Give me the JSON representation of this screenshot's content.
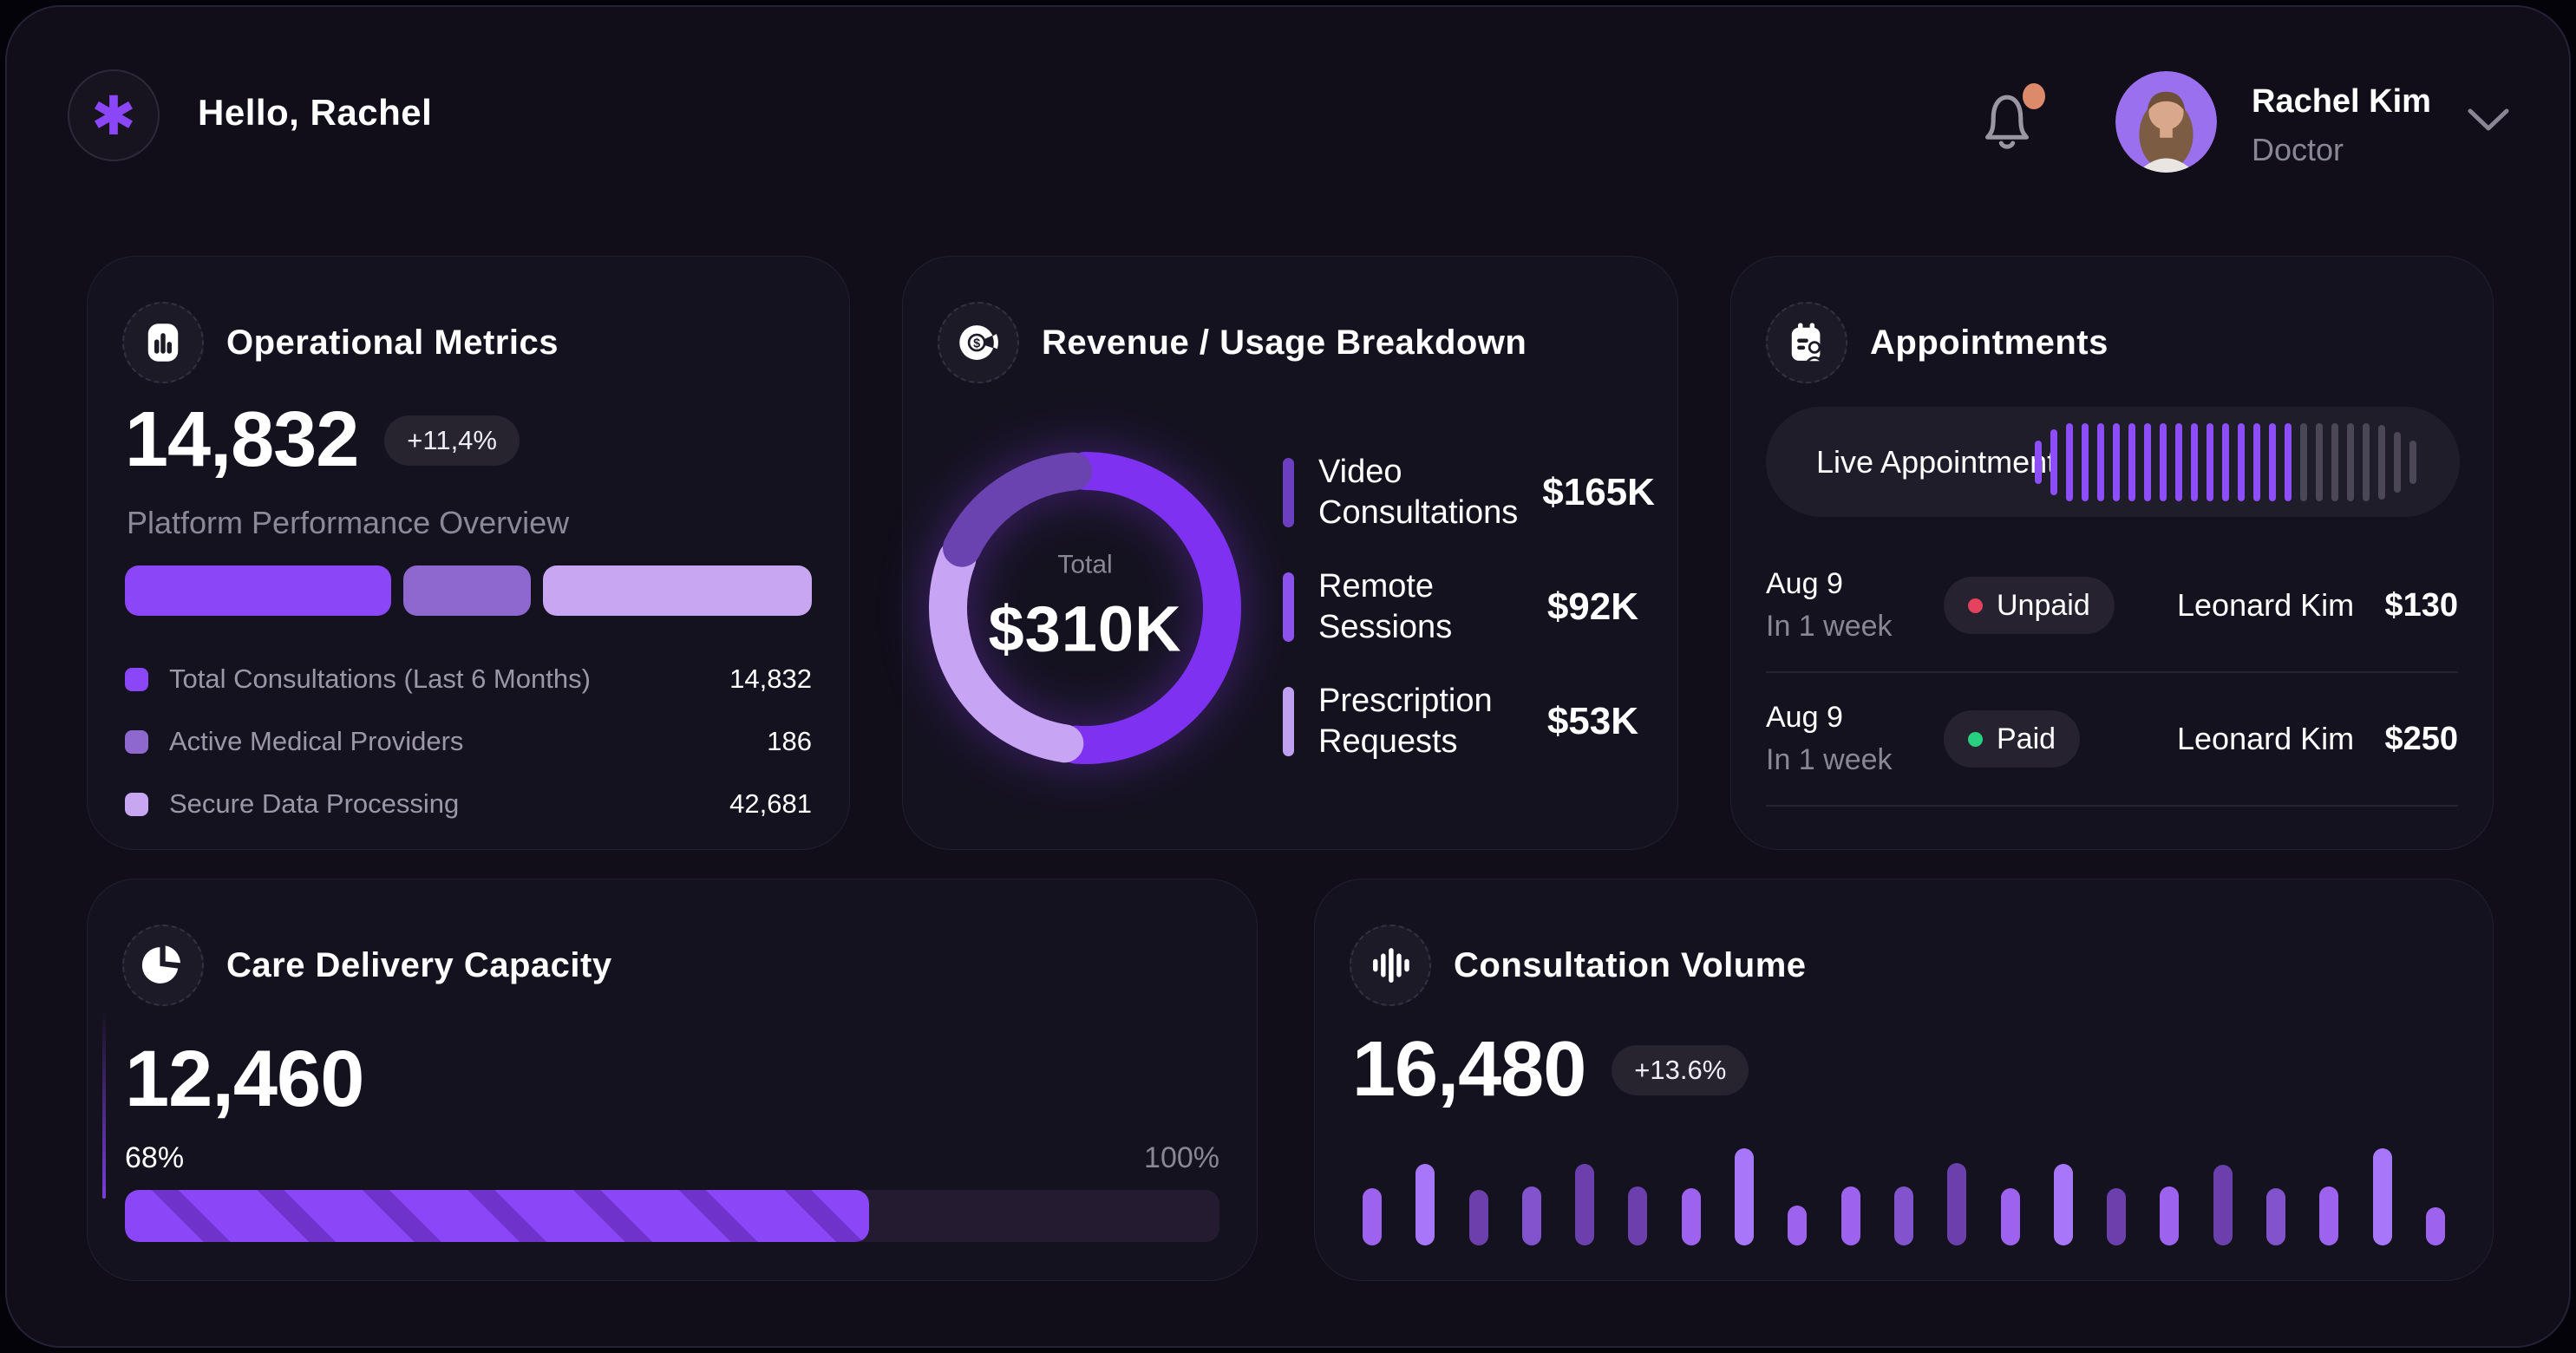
{
  "theme": {
    "accent": "#8b46f8",
    "page_bg": "#110e19",
    "card_bg": "#151220",
    "dim_text": "#8a8794",
    "badge_bg": "#27232f"
  },
  "header": {
    "greeting": "Hello, Rachel",
    "notification_dot_color": "#dd8a6b",
    "user": {
      "name": "Rachel Kim",
      "role": "Doctor"
    }
  },
  "cards": {
    "operational": {
      "title": "Operational Metrics",
      "value": "14,832",
      "delta": "+11,4%",
      "subtitle": "Platform Performance Overview",
      "bar_segments": [
        {
          "color": "#8b46f8",
          "pct": 40.2
        },
        {
          "color": "#8f68cf",
          "pct": 19.2
        },
        {
          "color": "#c9a6f2",
          "pct": 40.6
        }
      ],
      "legend": [
        {
          "label": "Total Consultations (Last 6 Months)",
          "value": "14,832",
          "color": "#8b46f8"
        },
        {
          "label": "Active Medical Providers",
          "value": "186",
          "color": "#8f68cf"
        },
        {
          "label": "Secure Data Processing",
          "value": "42,681",
          "color": "#c9a6f2"
        }
      ]
    },
    "revenue": {
      "title": "Revenue / Usage Breakdown",
      "total_label": "Total",
      "total_value": "$310K",
      "items": [
        {
          "line1": "Video",
          "line2": "Consultations",
          "value": "$165K",
          "value_num": 165,
          "marker": "#6b3fc0",
          "ring": "#7e31f0"
        },
        {
          "line1": "Remote",
          "line2": "Sessions",
          "value": "$92K",
          "value_num": 92,
          "marker": "#8b52ec",
          "ring": "#c7a4f4"
        },
        {
          "line1": "Prescription",
          "line2": "Requests",
          "value": "$53K",
          "value_num": 53,
          "marker": "#c0a0f0",
          "ring": "#6a43b0"
        }
      ]
    },
    "appointments": {
      "title": "Appointments",
      "live_label": "Live Appointment",
      "waveform": {
        "active_color": "#8d4df7",
        "inactive_color": "#4b4756",
        "bars": [
          {
            "h": 50,
            "on": true
          },
          {
            "h": 76,
            "on": true
          },
          {
            "h": 90,
            "on": true
          },
          {
            "h": 90,
            "on": true
          },
          {
            "h": 90,
            "on": true
          },
          {
            "h": 90,
            "on": true
          },
          {
            "h": 90,
            "on": true
          },
          {
            "h": 90,
            "on": true
          },
          {
            "h": 90,
            "on": true
          },
          {
            "h": 90,
            "on": true
          },
          {
            "h": 90,
            "on": true
          },
          {
            "h": 90,
            "on": true
          },
          {
            "h": 90,
            "on": true
          },
          {
            "h": 90,
            "on": true
          },
          {
            "h": 90,
            "on": true
          },
          {
            "h": 90,
            "on": true
          },
          {
            "h": 90,
            "on": true
          },
          {
            "h": 90,
            "on": false
          },
          {
            "h": 90,
            "on": false
          },
          {
            "h": 90,
            "on": false
          },
          {
            "h": 90,
            "on": false
          },
          {
            "h": 90,
            "on": false
          },
          {
            "h": 86,
            "on": false
          },
          {
            "h": 70,
            "on": false
          },
          {
            "h": 50,
            "on": false
          }
        ]
      },
      "rows": [
        {
          "date": "Aug 9",
          "when": "In 1 week",
          "status": "Unpaid",
          "status_color": "#e4425d",
          "name": "Leonard Kim",
          "price": "$130"
        },
        {
          "date": "Aug 9",
          "when": "In 1 week",
          "status": "Paid",
          "status_color": "#27d17f",
          "name": "Leonard Kim",
          "price": "$250"
        }
      ]
    },
    "capacity": {
      "title": "Care Delivery Capacity",
      "value": "12,460",
      "pct_current": "68%",
      "pct_max": "100%",
      "fill_pct": 68
    },
    "volume": {
      "title": "Consultation Volume",
      "value": "16,480",
      "delta": "+13.6%",
      "bars": [
        {
          "h": 66,
          "c": "#9d63ef"
        },
        {
          "h": 94,
          "c": "#a876f8"
        },
        {
          "h": 64,
          "c": "#6b40ad"
        },
        {
          "h": 68,
          "c": "#8153cc"
        },
        {
          "h": 94,
          "c": "#6b40ad"
        },
        {
          "h": 68,
          "c": "#6b40ad"
        },
        {
          "h": 66,
          "c": "#9d63ef"
        },
        {
          "h": 112,
          "c": "#a876f8"
        },
        {
          "h": 46,
          "c": "#9d63ef"
        },
        {
          "h": 68,
          "c": "#9d63ef"
        },
        {
          "h": 68,
          "c": "#8153cc"
        },
        {
          "h": 95,
          "c": "#6b40ad"
        },
        {
          "h": 66,
          "c": "#9d63ef"
        },
        {
          "h": 94,
          "c": "#a876f8"
        },
        {
          "h": 66,
          "c": "#6b40ad"
        },
        {
          "h": 68,
          "c": "#9d63ef"
        },
        {
          "h": 93,
          "c": "#6b40ad"
        },
        {
          "h": 66,
          "c": "#8153cc"
        },
        {
          "h": 68,
          "c": "#9d63ef"
        },
        {
          "h": 112,
          "c": "#a876f8"
        },
        {
          "h": 44,
          "c": "#9d63ef"
        }
      ]
    }
  },
  "chart_data": [
    {
      "type": "pie",
      "title": "Revenue / Usage Breakdown",
      "labels": [
        "Video Consultations",
        "Remote Sessions",
        "Prescription Requests"
      ],
      "values": [
        165,
        92,
        53
      ],
      "unit": "K USD",
      "center_label": "Total",
      "center_total": "$310K",
      "legend_position": "right",
      "donut": true
    },
    {
      "type": "bar",
      "title": "Consultation Volume (unlabeled sparkline bars, relative heights)",
      "values": [
        66,
        94,
        64,
        68,
        94,
        68,
        66,
        112,
        46,
        68,
        68,
        95,
        66,
        94,
        66,
        68,
        93,
        66,
        68,
        112,
        44
      ],
      "xlabel": "",
      "ylabel": "",
      "grid": false
    },
    {
      "type": "bar",
      "title": "Operational Metrics segmented bar (share of width %)",
      "categories": [
        "Total Consultations",
        "Active Medical Providers",
        "Secure Data Processing"
      ],
      "values": [
        40.2,
        19.2,
        40.6
      ]
    },
    {
      "type": "gauge",
      "title": "Care Delivery Capacity",
      "value": 68,
      "max": 100,
      "unit": "%"
    }
  ]
}
